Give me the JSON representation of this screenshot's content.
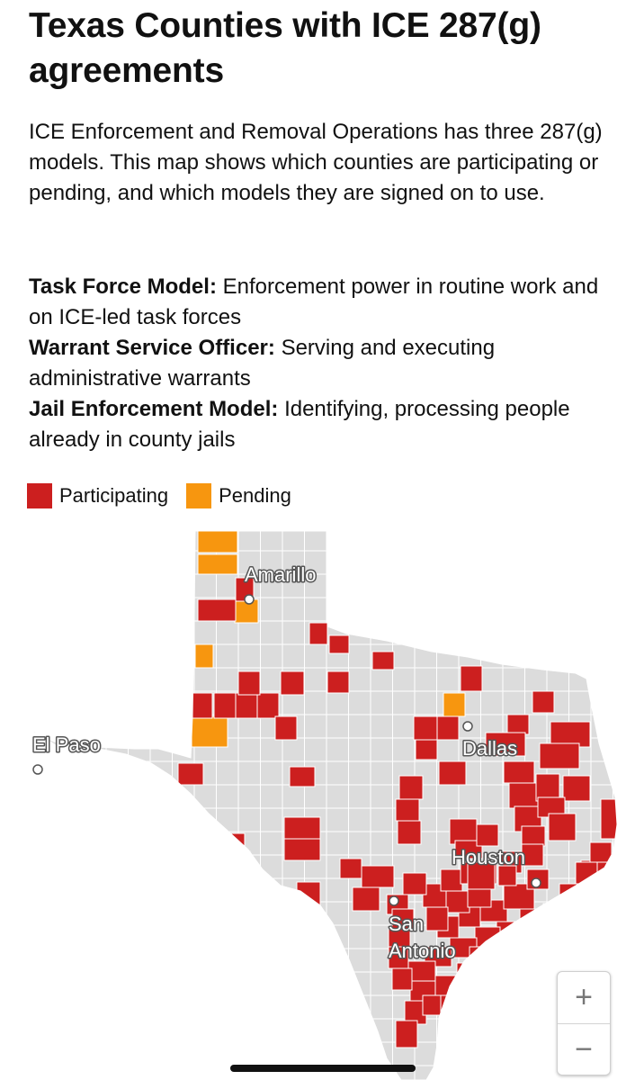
{
  "title": "Texas Counties with ICE 287(g) agreements",
  "intro": "ICE Enforcement and Removal Operations has three 287(g) models. This map shows which counties are participating or pending, and which models they are signed on to use.",
  "models": [
    {
      "name": "Task Force Model:",
      "desc": "Enforcement power in routine work and on ICE-led task forces"
    },
    {
      "name": "Warrant Service Officer:",
      "desc": "Serving and executing administrative warrants"
    },
    {
      "name": "Jail Enforcement Model:",
      "desc": "Identifying, processing people already in county jails"
    }
  ],
  "legend": [
    {
      "label": "Participating",
      "color": "#cc1f1f"
    },
    {
      "label": "Pending",
      "color": "#f7960f"
    }
  ],
  "map_colors": {
    "base": "#dcdcdc",
    "border": "#ffffff"
  },
  "cities": [
    {
      "name": "Amarillo"
    },
    {
      "name": "El Paso"
    },
    {
      "name": "Dallas"
    },
    {
      "name": "Houston"
    },
    {
      "name": "San",
      "name2": "Antonio"
    }
  ],
  "zoom": {
    "in_label": "+",
    "out_label": "−"
  }
}
